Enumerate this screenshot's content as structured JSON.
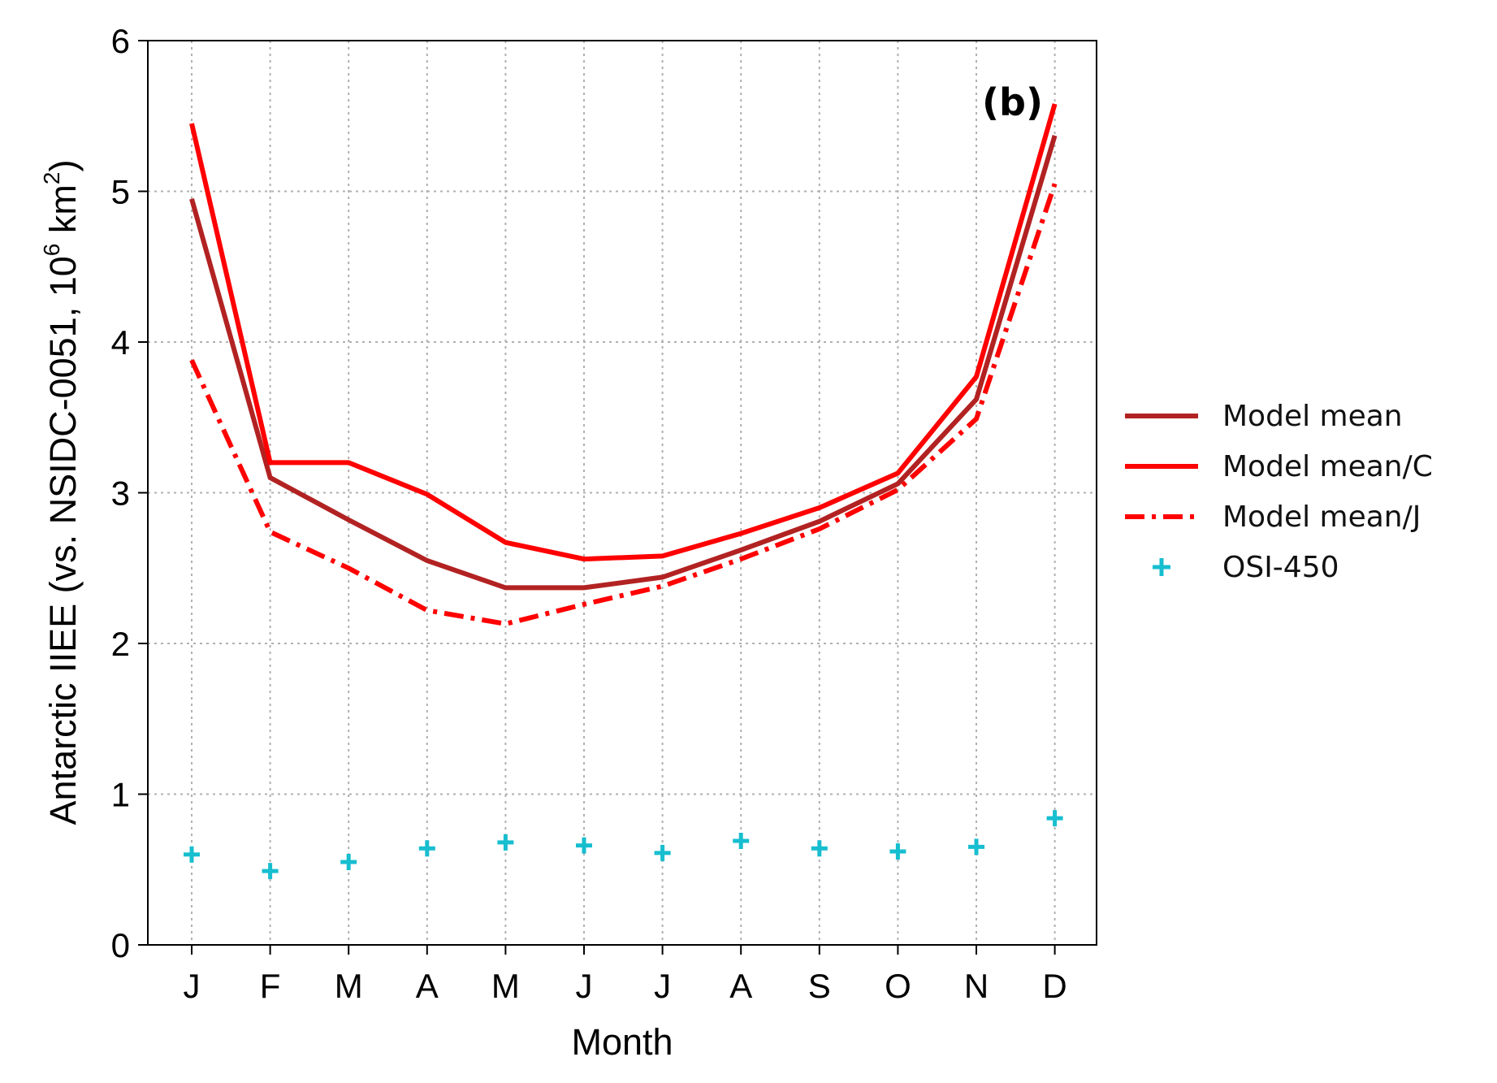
{
  "chart_data": {
    "type": "line",
    "panel_label": "(b)",
    "xlabel": "Month",
    "ylabel": "Antarctic IIEE (vs. NSIDC-0051, 10",
    "ylabel_sup1": "6",
    "ylabel_mid": " km",
    "ylabel_sup2": "2",
    "ylabel_end": ")",
    "categories": [
      "J",
      "F",
      "M",
      "A",
      "M",
      "J",
      "J",
      "A",
      "S",
      "O",
      "N",
      "D"
    ],
    "ylim": [
      0,
      6
    ],
    "yticks": [
      "0",
      "1",
      "2",
      "3",
      "4",
      "5",
      "6"
    ],
    "grid": true,
    "legend_position": "right-outside",
    "series": [
      {
        "name": "Model mean",
        "style": "solid",
        "color": "#b22222",
        "values": [
          4.95,
          3.1,
          2.82,
          2.55,
          2.37,
          2.37,
          2.44,
          2.62,
          2.81,
          3.06,
          3.62,
          5.37
        ]
      },
      {
        "name": "Model mean/C",
        "style": "solid",
        "color": "#ff0000",
        "values": [
          5.45,
          3.2,
          3.2,
          2.99,
          2.67,
          2.56,
          2.58,
          2.73,
          2.9,
          3.13,
          3.77,
          5.58
        ]
      },
      {
        "name": "Model mean/J",
        "style": "dashdot",
        "color": "#ff0000",
        "values": [
          3.88,
          2.74,
          2.5,
          2.22,
          2.13,
          2.26,
          2.38,
          2.56,
          2.76,
          3.02,
          3.49,
          5.05
        ]
      },
      {
        "name": "OSI-450",
        "style": "marker",
        "marker": "+",
        "color": "#17becf",
        "values": [
          0.6,
          0.49,
          0.55,
          0.64,
          0.68,
          0.66,
          0.61,
          0.69,
          0.64,
          0.62,
          0.65,
          0.84
        ]
      }
    ]
  }
}
